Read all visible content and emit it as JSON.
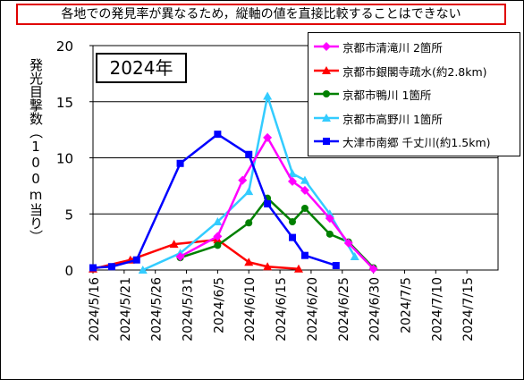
{
  "notice": "各地での発見率が異なるため，縦軸の値を直接比較することはできない",
  "year_label": "2024年",
  "chart_data": {
    "type": "line",
    "ylabel": "発光目撃数（100m当り）",
    "ylim": [
      0,
      20
    ],
    "yticks": [
      0,
      5,
      10,
      15,
      20
    ],
    "xlim": [
      "2024/5/16",
      "2024/7/20"
    ],
    "xticks": [
      "2024/5/16",
      "2024/5/21",
      "2024/5/26",
      "2024/5/31",
      "2024/6/5",
      "2024/6/10",
      "2024/6/15",
      "2024/6/20",
      "2024/6/25",
      "2024/6/30",
      "2024/7/5",
      "2024/7/10",
      "2024/7/15"
    ],
    "grid": true,
    "legend_position": "top-right",
    "series": [
      {
        "name": "京都市清滝川 2箇所",
        "color": "#ff00ff",
        "marker": "diamond",
        "points": [
          [
            "2024/5/30",
            1.2
          ],
          [
            "2024/6/5",
            3.0
          ],
          [
            "2024/6/9",
            8.0
          ],
          [
            "2024/6/13",
            11.8
          ],
          [
            "2024/6/17",
            7.9
          ],
          [
            "2024/6/19",
            7.1
          ],
          [
            "2024/6/23",
            4.6
          ],
          [
            "2024/6/26",
            2.4
          ],
          [
            "2024/6/30",
            0.1
          ]
        ]
      },
      {
        "name": "京都市銀閣寺疏水(約2.8km)",
        "color": "#ff0000",
        "marker": "triangle",
        "points": [
          [
            "2024/5/16",
            0.1
          ],
          [
            "2024/5/22",
            0.9
          ],
          [
            "2024/5/29",
            2.3
          ],
          [
            "2024/6/5",
            2.7
          ],
          [
            "2024/6/10",
            0.7
          ],
          [
            "2024/6/13",
            0.3
          ],
          [
            "2024/6/18",
            0.1
          ]
        ]
      },
      {
        "name": "京都市鴨川 1箇所",
        "color": "#008000",
        "marker": "circle",
        "points": [
          [
            "2024/5/30",
            1.1
          ],
          [
            "2024/6/5",
            2.2
          ],
          [
            "2024/6/10",
            4.2
          ],
          [
            "2024/6/13",
            6.4
          ],
          [
            "2024/6/17",
            4.3
          ],
          [
            "2024/6/19",
            5.5
          ],
          [
            "2024/6/23",
            3.2
          ],
          [
            "2024/6/26",
            2.5
          ],
          [
            "2024/6/30",
            0.2
          ]
        ]
      },
      {
        "name": "京都市高野川 1箇所",
        "color": "#33ccff",
        "marker": "triangle",
        "points": [
          [
            "2024/5/24",
            0.0
          ],
          [
            "2024/5/30",
            1.5
          ],
          [
            "2024/6/5",
            4.3
          ],
          [
            "2024/6/10",
            7.0
          ],
          [
            "2024/6/13",
            15.5
          ],
          [
            "2024/6/17",
            8.6
          ],
          [
            "2024/6/19",
            8.0
          ],
          [
            "2024/6/23",
            5.0
          ],
          [
            "2024/6/27",
            1.2
          ]
        ]
      },
      {
        "name": "大津市南郷 千丈川(約1.5km)",
        "color": "#0000ff",
        "marker": "square",
        "points": [
          [
            "2024/5/16",
            0.2
          ],
          [
            "2024/5/19",
            0.3
          ],
          [
            "2024/5/23",
            0.9
          ],
          [
            "2024/5/30",
            9.5
          ],
          [
            "2024/6/5",
            12.1
          ],
          [
            "2024/6/10",
            10.3
          ],
          [
            "2024/6/13",
            5.9
          ],
          [
            "2024/6/17",
            2.9
          ],
          [
            "2024/6/19",
            1.3
          ],
          [
            "2024/6/24",
            0.4
          ]
        ]
      }
    ]
  }
}
